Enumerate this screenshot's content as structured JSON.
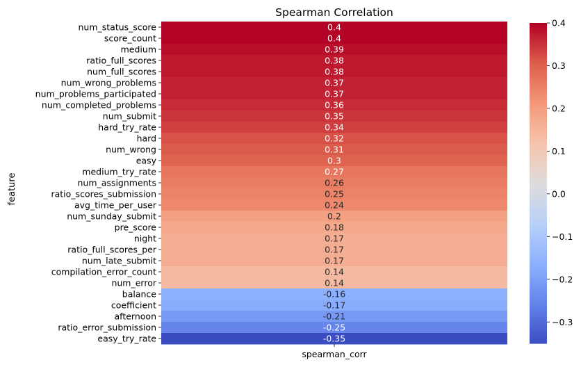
{
  "chart_data": {
    "type": "heatmap",
    "title": "Spearman Correlation",
    "xlabel": "",
    "ylabel": "feature",
    "columns": [
      "spearman_corr"
    ],
    "rows": [
      {
        "feature": "num_status_score",
        "value": 0.4,
        "label": "0.4"
      },
      {
        "feature": "score_count",
        "value": 0.4,
        "label": "0.4"
      },
      {
        "feature": "medium",
        "value": 0.39,
        "label": "0.39"
      },
      {
        "feature": "ratio_full_scores",
        "value": 0.38,
        "label": "0.38"
      },
      {
        "feature": "num_full_scores",
        "value": 0.38,
        "label": "0.38"
      },
      {
        "feature": "num_wrong_problems",
        "value": 0.37,
        "label": "0.37"
      },
      {
        "feature": "num_problems_participated",
        "value": 0.37,
        "label": "0.37"
      },
      {
        "feature": "num_completed_problems",
        "value": 0.36,
        "label": "0.36"
      },
      {
        "feature": "num_submit",
        "value": 0.35,
        "label": "0.35"
      },
      {
        "feature": "hard_try_rate",
        "value": 0.34,
        "label": "0.34"
      },
      {
        "feature": "hard",
        "value": 0.32,
        "label": "0.32"
      },
      {
        "feature": "num_wrong",
        "value": 0.31,
        "label": "0.31"
      },
      {
        "feature": "easy",
        "value": 0.3,
        "label": "0.3"
      },
      {
        "feature": "medium_try_rate",
        "value": 0.27,
        "label": "0.27"
      },
      {
        "feature": "num_assignments",
        "value": 0.26,
        "label": "0.26"
      },
      {
        "feature": "ratio_scores_submission",
        "value": 0.25,
        "label": "0.25"
      },
      {
        "feature": "avg_time_per_user",
        "value": 0.24,
        "label": "0.24"
      },
      {
        "feature": "num_sunday_submit",
        "value": 0.2,
        "label": "0.2"
      },
      {
        "feature": "pre_score",
        "value": 0.18,
        "label": "0.18"
      },
      {
        "feature": "night",
        "value": 0.17,
        "label": "0.17"
      },
      {
        "feature": "ratio_full_scores_per",
        "value": 0.17,
        "label": "0.17"
      },
      {
        "feature": "num_late_submit",
        "value": 0.17,
        "label": "0.17"
      },
      {
        "feature": "compilation_error_count",
        "value": 0.14,
        "label": "0.14"
      },
      {
        "feature": "num_error",
        "value": 0.14,
        "label": "0.14"
      },
      {
        "feature": "balance",
        "value": -0.16,
        "label": "-0.16"
      },
      {
        "feature": "coefficient",
        "value": -0.17,
        "label": "-0.17"
      },
      {
        "feature": "afternoon",
        "value": -0.21,
        "label": "-0.21"
      },
      {
        "feature": "ratio_error_submission",
        "value": -0.25,
        "label": "-0.25"
      },
      {
        "feature": "easy_try_rate",
        "value": -0.35,
        "label": "-0.35"
      }
    ],
    "colormap": "coolwarm",
    "color_range": [
      -0.35,
      0.4
    ],
    "colorbar_ticks": [
      {
        "value": 0.4,
        "label": "0.4"
      },
      {
        "value": 0.3,
        "label": "0.3"
      },
      {
        "value": 0.2,
        "label": "0.2"
      },
      {
        "value": 0.1,
        "label": "0.1"
      },
      {
        "value": 0.0,
        "label": "0.0"
      },
      {
        "value": -0.1,
        "label": "−0.1"
      },
      {
        "value": -0.2,
        "label": "−0.2"
      },
      {
        "value": -0.3,
        "label": "−0.3"
      }
    ],
    "grid": false,
    "legend": "colorbar-right"
  }
}
